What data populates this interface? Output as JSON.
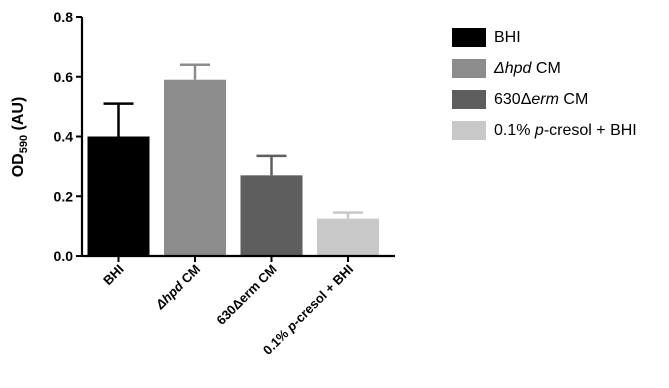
{
  "chart_data": {
    "type": "bar",
    "ylabel_main": "OD",
    "ylabel_sub": "590",
    "ylabel_unit": " (AU)",
    "ylim": [
      0,
      0.8
    ],
    "yticks": [
      "0.0",
      "0.2",
      "0.4",
      "0.6",
      "0.8"
    ],
    "ytick_values": [
      0,
      0.2,
      0.4,
      0.6,
      0.8
    ],
    "grid": false,
    "legend_position": "top-right",
    "categories": [
      {
        "parts": [
          {
            "t": "BHI",
            "i": false
          }
        ]
      },
      {
        "parts": [
          {
            "t": "Δ",
            "i": true
          },
          {
            "t": "hpd",
            "i": true
          },
          {
            "t": " CM",
            "i": false
          }
        ]
      },
      {
        "parts": [
          {
            "t": "630",
            "i": false
          },
          {
            "t": "Δ",
            "i": false
          },
          {
            "t": "erm CM",
            "i": false
          }
        ]
      },
      {
        "parts": [
          {
            "t": "0.1% ",
            "i": false
          },
          {
            "t": "p",
            "i": true
          },
          {
            "t": "-cresol + BHI",
            "i": false
          }
        ]
      }
    ],
    "values": [
      0.4,
      0.59,
      0.27,
      0.125
    ],
    "errors": [
      0.11,
      0.05,
      0.065,
      0.02
    ],
    "colors": [
      "#000000",
      "#8c8c8c",
      "#5e5e5e",
      "#c8c8c8"
    ],
    "legend": [
      {
        "parts": [
          {
            "t": "BHI",
            "i": false
          }
        ]
      },
      {
        "parts": [
          {
            "t": "Δhpd",
            "i": true
          },
          {
            "t": " CM",
            "i": false
          }
        ]
      },
      {
        "parts": [
          {
            "t": "630Δ",
            "i": false
          },
          {
            "t": "erm",
            "i": true
          },
          {
            "t": " CM",
            "i": false
          }
        ]
      },
      {
        "parts": [
          {
            "t": "0.1% ",
            "i": false
          },
          {
            "t": "p",
            "i": true
          },
          {
            "t": "-cresol + BHI",
            "i": false
          }
        ]
      }
    ]
  }
}
